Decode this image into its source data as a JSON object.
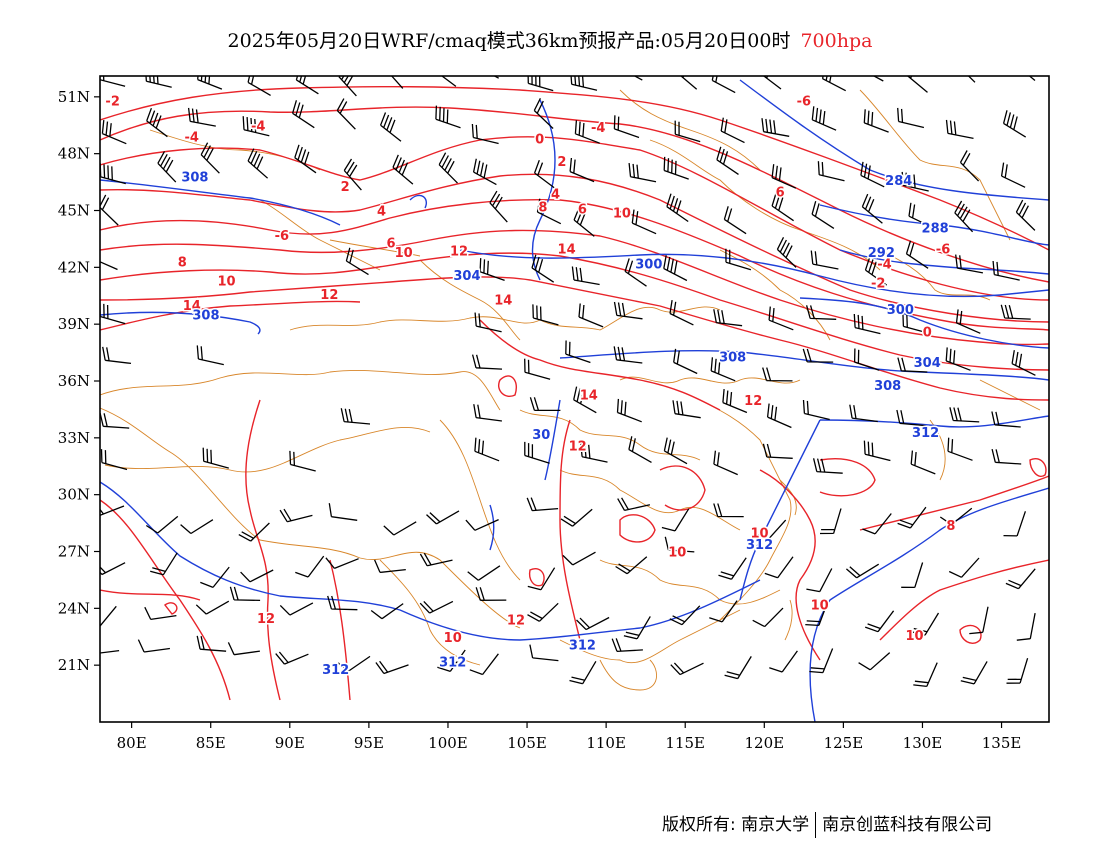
{
  "title": {
    "main": "2025年05月20日WRF/cmaq模式36km预报产品:05月20日00时",
    "level": "700hpa"
  },
  "axes": {
    "lat_labels": [
      "51N",
      "48N",
      "45N",
      "42N",
      "39N",
      "36N",
      "33N",
      "30N",
      "27N",
      "24N",
      "21N"
    ],
    "lat_values": [
      51,
      48,
      45,
      42,
      39,
      36,
      33,
      30,
      27,
      24,
      21
    ],
    "lon_labels": [
      "80E",
      "85E",
      "90E",
      "95E",
      "100E",
      "105E",
      "110E",
      "115E",
      "120E",
      "125E",
      "130E",
      "135E"
    ],
    "lon_values": [
      80,
      85,
      90,
      95,
      100,
      105,
      110,
      115,
      120,
      125,
      130,
      135
    ],
    "lon_range": [
      78,
      138
    ],
    "lat_range": [
      18,
      52.1
    ]
  },
  "colors": {
    "temperature": "#e8242a",
    "geopotential": "#2040d8",
    "boundaries": "#d8862a",
    "wind": "#000000"
  },
  "temperature_labels": [
    {
      "text": "-2",
      "lon": 78.8,
      "lat": 50.8
    },
    {
      "text": "-4",
      "lon": 83.8,
      "lat": 48.9
    },
    {
      "text": "-4",
      "lon": 88.0,
      "lat": 49.5
    },
    {
      "text": "2",
      "lon": 93.5,
      "lat": 46.3
    },
    {
      "text": "4",
      "lon": 95.8,
      "lat": 45.0
    },
    {
      "text": "-6",
      "lon": 89.5,
      "lat": 43.7
    },
    {
      "text": "6",
      "lon": 96.4,
      "lat": 43.3
    },
    {
      "text": "10",
      "lon": 97.2,
      "lat": 42.8
    },
    {
      "text": "12",
      "lon": 100.7,
      "lat": 42.9
    },
    {
      "text": "8",
      "lon": 83.2,
      "lat": 42.3
    },
    {
      "text": "10",
      "lon": 86.0,
      "lat": 41.3
    },
    {
      "text": "12",
      "lon": 92.5,
      "lat": 40.6
    },
    {
      "text": "14",
      "lon": 83.8,
      "lat": 40.0
    },
    {
      "text": "14",
      "lon": 103.5,
      "lat": 40.3
    },
    {
      "text": "0",
      "lon": 105.8,
      "lat": 48.8
    },
    {
      "text": "2",
      "lon": 107.2,
      "lat": 47.6
    },
    {
      "text": "-4",
      "lon": 109.5,
      "lat": 49.4
    },
    {
      "text": "4",
      "lon": 106.8,
      "lat": 45.9
    },
    {
      "text": "6",
      "lon": 108.5,
      "lat": 45.1
    },
    {
      "text": "8",
      "lon": 106.0,
      "lat": 45.2
    },
    {
      "text": "10",
      "lon": 111.0,
      "lat": 44.9
    },
    {
      "text": "14",
      "lon": 107.5,
      "lat": 43.0
    },
    {
      "text": "-6",
      "lon": 122.5,
      "lat": 50.8
    },
    {
      "text": "6",
      "lon": 121.0,
      "lat": 46.0
    },
    {
      "text": "-6",
      "lon": 131.3,
      "lat": 43.0
    },
    {
      "text": "-4",
      "lon": 127.6,
      "lat": 42.2
    },
    {
      "text": "-2",
      "lon": 127.2,
      "lat": 41.2
    },
    {
      "text": "0",
      "lon": 130.3,
      "lat": 38.6
    },
    {
      "text": "14",
      "lon": 108.9,
      "lat": 35.3
    },
    {
      "text": "12",
      "lon": 108.2,
      "lat": 32.6
    },
    {
      "text": "12",
      "lon": 119.3,
      "lat": 35.0
    },
    {
      "text": "10",
      "lon": 119.7,
      "lat": 28.0
    },
    {
      "text": "10",
      "lon": 114.5,
      "lat": 27.0
    },
    {
      "text": "12",
      "lon": 88.5,
      "lat": 23.5
    },
    {
      "text": "10",
      "lon": 100.3,
      "lat": 22.5
    },
    {
      "text": "12",
      "lon": 104.3,
      "lat": 23.4
    },
    {
      "text": "10",
      "lon": 123.5,
      "lat": 24.2
    },
    {
      "text": "8",
      "lon": 131.8,
      "lat": 28.4
    },
    {
      "text": "10",
      "lon": 129.5,
      "lat": 22.6
    }
  ],
  "height_labels": [
    {
      "text": "308",
      "lon": 84.0,
      "lat": 46.8
    },
    {
      "text": "308",
      "lon": 84.7,
      "lat": 39.5
    },
    {
      "text": "304",
      "lon": 101.2,
      "lat": 41.6
    },
    {
      "text": "300",
      "lon": 112.7,
      "lat": 42.2
    },
    {
      "text": "284",
      "lon": 128.5,
      "lat": 46.6
    },
    {
      "text": "288",
      "lon": 130.8,
      "lat": 44.1
    },
    {
      "text": "292",
      "lon": 127.4,
      "lat": 42.8
    },
    {
      "text": "300",
      "lon": 128.6,
      "lat": 39.8
    },
    {
      "text": "304",
      "lon": 130.3,
      "lat": 37.0
    },
    {
      "text": "308",
      "lon": 118.0,
      "lat": 37.3
    },
    {
      "text": "308",
      "lon": 127.8,
      "lat": 35.8
    },
    {
      "text": "312",
      "lon": 130.2,
      "lat": 33.3
    },
    {
      "text": "30",
      "lon": 105.9,
      "lat": 33.2
    },
    {
      "text": "312",
      "lon": 119.7,
      "lat": 27.4
    },
    {
      "text": "312",
      "lon": 108.5,
      "lat": 22.1
    },
    {
      "text": "312",
      "lon": 100.3,
      "lat": 21.2
    },
    {
      "text": "312",
      "lon": 92.9,
      "lat": 20.8
    }
  ],
  "footer": {
    "left": "版权所有: 南京大学",
    "right": "南京创蓝科技有限公司"
  }
}
